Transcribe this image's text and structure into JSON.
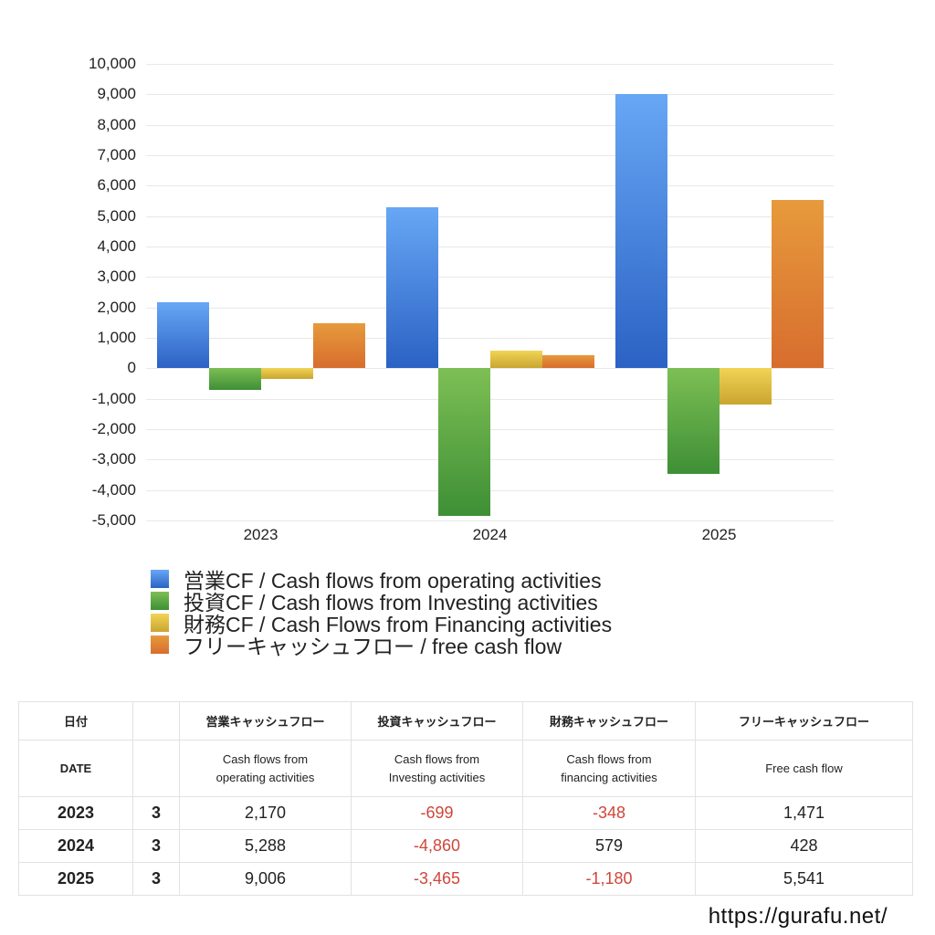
{
  "chart_data": {
    "type": "bar",
    "title": "",
    "xlabel": "",
    "ylabel": "",
    "categories": [
      "2023",
      "2024",
      "2025"
    ],
    "series": [
      {
        "name": "営業CF / Cash flows from operating activities",
        "values": [
          2170,
          5288,
          9006
        ],
        "color_top": "#67a7f5",
        "color_bottom": "#2b62c4"
      },
      {
        "name": "投資CF / Cash flows from Investing activities",
        "values": [
          -699,
          -4860,
          -3465
        ],
        "color_top": "#7dbf55",
        "color_bottom": "#3e8f35"
      },
      {
        "name": "財務CF / Cash Flows from Financing activities",
        "values": [
          -348,
          579,
          -1180
        ],
        "color_top": "#f2d455",
        "color_bottom": "#c9a530"
      },
      {
        "name": "フリーキャッシュフロー / free cash flow",
        "values": [
          1471,
          428,
          5541
        ],
        "color_top": "#e79a3c",
        "color_bottom": "#d76d2e"
      }
    ],
    "ylim": [
      -5000,
      10000
    ],
    "yticks": [
      "10,000",
      "9,000",
      "8,000",
      "7,000",
      "6,000",
      "5,000",
      "4,000",
      "3,000",
      "2,000",
      "1,000",
      "0",
      "-1,000",
      "-2,000",
      "-3,000",
      "-4,000",
      "-5,000"
    ],
    "grid": true,
    "legend_position": "bottom-left"
  },
  "legend": [
    {
      "label": "営業CF / Cash flows from operating activities",
      "color": "#3f7fdc"
    },
    {
      "label": "投資CF / Cash flows from Investing activities",
      "color": "#56a33f"
    },
    {
      "label": "財務CF / Cash Flows from Financing activities",
      "color": "#e2c042"
    },
    {
      "label": "フリーキャッシュフロー / free cash flow",
      "color": "#e08634"
    }
  ],
  "table": {
    "header_jp": [
      "日付",
      "",
      "営業キャッシュフロー",
      "投資キャッシュフロー",
      "財務キャッシュフロー",
      "フリーキャッシュフロー"
    ],
    "header_en": [
      "DATE",
      "",
      "Cash flows from operating activities",
      "Cash flows from Investing activities",
      "Cash flows from financing activities",
      "Free cash flow"
    ],
    "rows": [
      {
        "year": "2023",
        "month": "3",
        "operating": "2,170",
        "investing": "-699",
        "financing": "-348",
        "free": "1,471"
      },
      {
        "year": "2024",
        "month": "3",
        "operating": "5,288",
        "investing": "-4,860",
        "financing": "579",
        "free": "428"
      },
      {
        "year": "2025",
        "month": "3",
        "operating": "9,006",
        "investing": "-3,465",
        "financing": "-1,180",
        "free": "5,541"
      }
    ]
  },
  "footer": {
    "url": "https://gurafu.net/"
  },
  "colors": {
    "negative": "#d0463a"
  }
}
